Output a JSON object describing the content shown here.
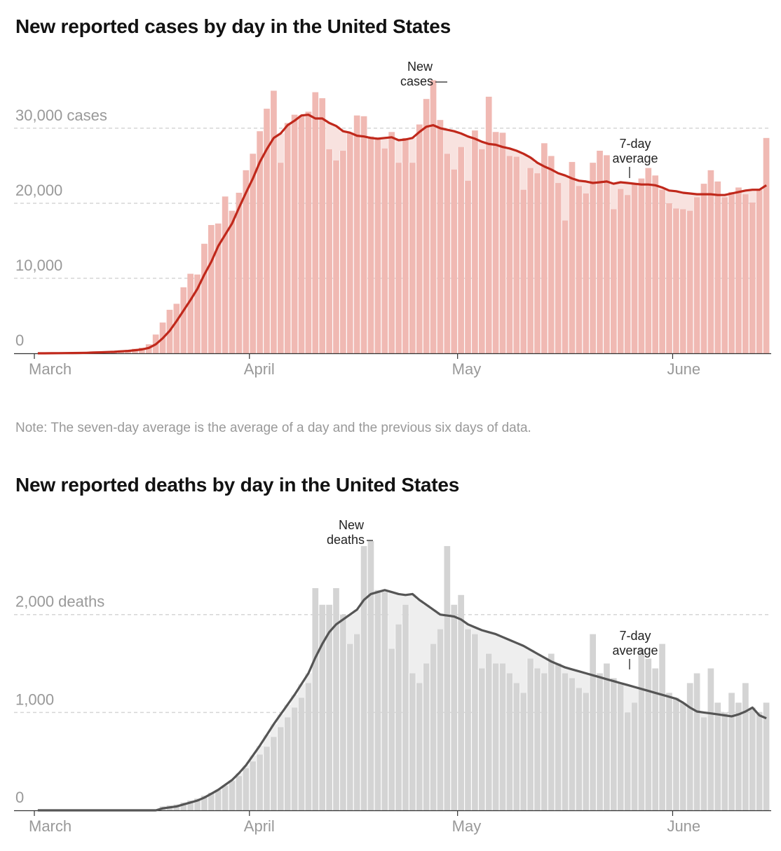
{
  "cases": {
    "title": "New reported cases by day in the United States",
    "bar_color": "#f0b9b3",
    "area_color": "#f8e2df",
    "line_color": "#c0281b",
    "annotation_bar": [
      "New",
      "cases"
    ],
    "annotation_avg": [
      "7-day",
      "average"
    ]
  },
  "note": "Note: The seven-day average is the average of a day and the previous six days of data.",
  "deaths": {
    "title": "New reported deaths by day in the United States",
    "bar_color": "#d4d4d4",
    "area_color": "#eeeeee",
    "line_color": "#555555",
    "annotation_bar": [
      "New",
      "deaths"
    ],
    "annotation_avg": [
      "7-day",
      "average"
    ]
  },
  "chart_data": [
    {
      "type": "bar",
      "title": "New reported cases by day in the United States",
      "x_start": "March 1",
      "x_ticks": [
        "March",
        "April",
        "May",
        "June"
      ],
      "y_ticks": [
        "0",
        "10,000",
        "20,000",
        "30,000 cases"
      ],
      "y_tick_values": [
        0,
        10000,
        20000,
        30000
      ],
      "ylim": [
        0,
        37000
      ],
      "grid": true,
      "series": [
        {
          "name": "New cases",
          "values": [
            0,
            0,
            20,
            20,
            50,
            60,
            100,
            120,
            150,
            200,
            250,
            300,
            400,
            450,
            600,
            750,
            1200,
            2500,
            4100,
            5800,
            6600,
            8800,
            10600,
            10500,
            14600,
            17100,
            17300,
            20900,
            19000,
            21400,
            24400,
            26600,
            29600,
            32600,
            35000,
            25400,
            30700,
            31800,
            31700,
            32200,
            34800,
            34000,
            27200,
            25700,
            27000,
            29300,
            31700,
            31600,
            28900,
            28500,
            27300,
            29500,
            25400,
            28700,
            25400,
            30500,
            33900,
            36400,
            31100,
            26600,
            24500,
            27500,
            23000,
            29700,
            27200,
            34200,
            29500,
            29400,
            26300,
            26200,
            21800,
            24700,
            24000,
            28000,
            26300,
            22700,
            17700,
            25500,
            22300,
            21300,
            25400,
            27000,
            26400,
            19200,
            21900,
            21100,
            22600,
            23300,
            24700,
            23700,
            21800,
            20000,
            19300,
            19200,
            19000,
            20800,
            22600,
            24400,
            22900,
            20800,
            21500,
            22100,
            21200,
            20100,
            21800,
            28700
          ]
        },
        {
          "name": "7-day average",
          "values": [
            0,
            0,
            10,
            20,
            30,
            40,
            50,
            70,
            100,
            130,
            170,
            200,
            260,
            320,
            410,
            510,
            720,
            1200,
            2000,
            3000,
            4300,
            5700,
            7100,
            8600,
            10500,
            12200,
            14300,
            15800,
            17300,
            19400,
            21400,
            23300,
            25500,
            27200,
            28700,
            29300,
            30400,
            31000,
            31700,
            31800,
            31300,
            31300,
            30700,
            30300,
            29600,
            29400,
            29000,
            28900,
            28700,
            28600,
            28700,
            28800,
            28400,
            28500,
            28700,
            29500,
            30200,
            30400,
            30000,
            29800,
            29600,
            29300,
            28900,
            28600,
            28200,
            27900,
            27800,
            27500,
            27300,
            27000,
            26600,
            26100,
            25400,
            24900,
            24500,
            24000,
            23700,
            23300,
            23000,
            22900,
            22700,
            22800,
            22900,
            22600,
            22800,
            22700,
            22600,
            22500,
            22500,
            22400,
            22100,
            21700,
            21600,
            21400,
            21300,
            21200,
            21200,
            21200,
            21100,
            21100,
            21300,
            21500,
            21700,
            21800,
            21800,
            22400
          ]
        }
      ]
    },
    {
      "type": "bar",
      "title": "New reported deaths by day in the United States",
      "x_start": "March 1",
      "x_ticks": [
        "March",
        "April",
        "May",
        "June"
      ],
      "y_ticks": [
        "0",
        "1,000",
        "2,000 deaths"
      ],
      "y_tick_values": [
        0,
        1000,
        2000
      ],
      "ylim": [
        0,
        2850
      ],
      "grid": true,
      "series": [
        {
          "name": "New deaths",
          "values": [
            0,
            0,
            0,
            0,
            0,
            0,
            0,
            0,
            0,
            0,
            0,
            0,
            0,
            0,
            0,
            0,
            0,
            0,
            40,
            50,
            60,
            80,
            100,
            120,
            150,
            180,
            210,
            250,
            300,
            350,
            430,
            500,
            570,
            650,
            750,
            850,
            950,
            1050,
            1150,
            1300,
            2270,
            2100,
            2100,
            2270,
            2000,
            1700,
            1800,
            2700,
            2750,
            2250,
            2230,
            1650,
            1900,
            2100,
            1400,
            1300,
            1500,
            1700,
            1850,
            2700,
            2100,
            2200,
            1850,
            1800,
            1450,
            1600,
            1500,
            1500,
            1400,
            1300,
            1200,
            1550,
            1450,
            1400,
            1600,
            1500,
            1400,
            1350,
            1250,
            1200,
            1800,
            1400,
            1500,
            1350,
            1300,
            1000,
            1100,
            1650,
            1550,
            1450,
            1700,
            1200,
            1150,
            1100,
            1300,
            1400,
            950,
            1450,
            1100,
            1000,
            1200,
            1100,
            1300,
            1050,
            1000,
            1100
          ]
        },
        {
          "name": "7-day average",
          "values": [
            0,
            0,
            0,
            0,
            0,
            0,
            0,
            0,
            0,
            0,
            0,
            0,
            0,
            0,
            0,
            0,
            0,
            0,
            20,
            30,
            40,
            60,
            80,
            100,
            130,
            170,
            210,
            260,
            310,
            380,
            460,
            560,
            660,
            770,
            880,
            980,
            1080,
            1180,
            1290,
            1400,
            1560,
            1700,
            1820,
            1900,
            1950,
            2000,
            2050,
            2150,
            2210,
            2230,
            2250,
            2230,
            2210,
            2200,
            2210,
            2150,
            2100,
            2050,
            2000,
            1990,
            1980,
            1950,
            1900,
            1870,
            1840,
            1820,
            1800,
            1770,
            1740,
            1710,
            1680,
            1640,
            1600,
            1560,
            1520,
            1490,
            1460,
            1440,
            1420,
            1400,
            1380,
            1360,
            1340,
            1320,
            1300,
            1280,
            1260,
            1240,
            1220,
            1200,
            1180,
            1160,
            1140,
            1100,
            1050,
            1010,
            1000,
            990,
            980,
            970,
            960,
            980,
            1010,
            1050,
            970,
            940
          ]
        }
      ]
    }
  ]
}
